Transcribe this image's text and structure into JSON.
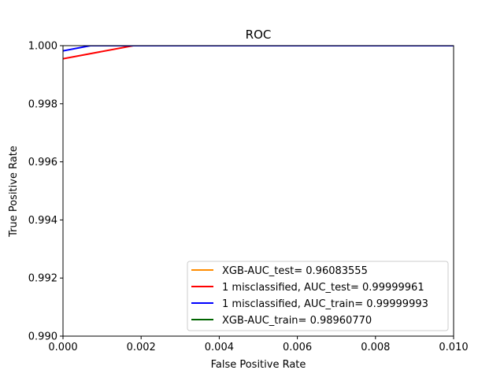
{
  "chart_data": {
    "type": "line",
    "title": "ROC",
    "xlabel": "False Positive Rate",
    "ylabel": "True Positive Rate",
    "xlim": [
      0.0,
      0.01
    ],
    "ylim": [
      0.99,
      1.0
    ],
    "xticks": [
      "0.000",
      "0.002",
      "0.004",
      "0.006",
      "0.008",
      "0.010"
    ],
    "yticks": [
      "0.990",
      "0.992",
      "0.994",
      "0.996",
      "0.998",
      "1.000"
    ],
    "grid": false,
    "legend_position": "lower-right",
    "series": [
      {
        "name": "XGB-AUC_test= 0.96083555",
        "color": "#ff8c00",
        "x": [],
        "y": []
      },
      {
        "name": "1 misclassified, AUC_test= 0.99999961",
        "color": "#ff0000",
        "x": [
          0.0,
          0.0018,
          0.01
        ],
        "y": [
          0.99955,
          1.0,
          1.0
        ]
      },
      {
        "name": "1 misclassified, AUC_train= 0.99999993",
        "color": "#0000ff",
        "x": [
          0.0,
          0.0007,
          0.01
        ],
        "y": [
          0.99982,
          1.0,
          1.0
        ]
      },
      {
        "name": "XGB-AUC_train= 0.98960770",
        "color": "#006400",
        "x": [],
        "y": []
      }
    ]
  }
}
